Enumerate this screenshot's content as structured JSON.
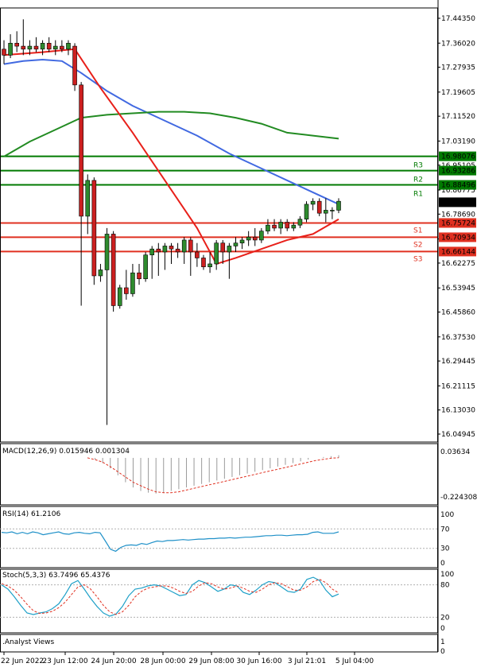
{
  "chart_data": [
    {
      "type": "candlestick",
      "x_labels": [
        "22 Jun 2022",
        "23 Jun 12:00",
        "24 Jun 20:00",
        "28 Jun 00:00",
        "29 Jun 08:00",
        "30 Jun 16:00",
        "3 Jul 21:01",
        "5 Jul 04:00"
      ],
      "y_ticks": [
        "17.44350",
        "17.36020",
        "17.27935",
        "17.19605",
        "17.11520",
        "17.03190",
        "16.95105",
        "16.86775",
        "16.78690",
        "16.70360",
        "16.62275",
        "16.53945",
        "16.45860",
        "16.37530",
        "16.29445",
        "16.21115",
        "16.13030",
        "16.04945"
      ],
      "ylim": [
        16.04945,
        17.4435
      ],
      "candles": [
        {
          "o": 17.34,
          "h": 17.37,
          "l": 17.29,
          "c": 17.32
        },
        {
          "o": 17.32,
          "h": 17.39,
          "l": 17.31,
          "c": 17.36
        },
        {
          "o": 17.36,
          "h": 17.4,
          "l": 17.33,
          "c": 17.35
        },
        {
          "o": 17.35,
          "h": 17.44,
          "l": 17.32,
          "c": 17.34
        },
        {
          "o": 17.34,
          "h": 17.37,
          "l": 17.32,
          "c": 17.35
        },
        {
          "o": 17.35,
          "h": 17.38,
          "l": 17.33,
          "c": 17.34
        },
        {
          "o": 17.34,
          "h": 17.37,
          "l": 17.32,
          "c": 17.36
        },
        {
          "o": 17.36,
          "h": 17.38,
          "l": 17.33,
          "c": 17.34
        },
        {
          "o": 17.34,
          "h": 17.37,
          "l": 17.32,
          "c": 17.35
        },
        {
          "o": 17.35,
          "h": 17.37,
          "l": 17.33,
          "c": 17.34
        },
        {
          "o": 17.34,
          "h": 17.37,
          "l": 17.32,
          "c": 17.36
        },
        {
          "o": 17.35,
          "h": 17.36,
          "l": 17.2,
          "c": 17.22
        },
        {
          "o": 17.22,
          "h": 17.23,
          "l": 16.48,
          "c": 16.78
        },
        {
          "o": 16.78,
          "h": 16.92,
          "l": 16.72,
          "c": 16.9
        },
        {
          "o": 16.9,
          "h": 16.91,
          "l": 16.55,
          "c": 16.58
        },
        {
          "o": 16.58,
          "h": 16.62,
          "l": 16.56,
          "c": 16.6
        },
        {
          "o": 16.6,
          "h": 16.74,
          "l": 16.08,
          "c": 16.72
        },
        {
          "o": 16.72,
          "h": 16.73,
          "l": 16.46,
          "c": 16.48
        },
        {
          "o": 16.48,
          "h": 16.55,
          "l": 16.47,
          "c": 16.54
        },
        {
          "o": 16.54,
          "h": 16.6,
          "l": 16.5,
          "c": 16.52
        },
        {
          "o": 16.52,
          "h": 16.62,
          "l": 16.51,
          "c": 16.59
        },
        {
          "o": 16.59,
          "h": 16.62,
          "l": 16.55,
          "c": 16.57
        },
        {
          "o": 16.57,
          "h": 16.66,
          "l": 16.56,
          "c": 16.65
        },
        {
          "o": 16.65,
          "h": 16.68,
          "l": 16.57,
          "c": 16.67
        },
        {
          "o": 16.67,
          "h": 16.69,
          "l": 16.58,
          "c": 16.66
        },
        {
          "o": 16.66,
          "h": 16.69,
          "l": 16.6,
          "c": 16.68
        },
        {
          "o": 16.68,
          "h": 16.69,
          "l": 16.62,
          "c": 16.67
        },
        {
          "o": 16.67,
          "h": 16.69,
          "l": 16.64,
          "c": 16.66
        },
        {
          "o": 16.66,
          "h": 16.71,
          "l": 16.62,
          "c": 16.7
        },
        {
          "o": 16.7,
          "h": 16.71,
          "l": 16.58,
          "c": 16.66
        },
        {
          "o": 16.66,
          "h": 16.69,
          "l": 16.61,
          "c": 16.64
        },
        {
          "o": 16.64,
          "h": 16.65,
          "l": 16.6,
          "c": 16.61
        },
        {
          "o": 16.61,
          "h": 16.66,
          "l": 16.59,
          "c": 16.62
        },
        {
          "o": 16.62,
          "h": 16.7,
          "l": 16.6,
          "c": 16.69
        },
        {
          "o": 16.69,
          "h": 16.7,
          "l": 16.62,
          "c": 16.66
        },
        {
          "o": 16.66,
          "h": 16.69,
          "l": 16.57,
          "c": 16.68
        },
        {
          "o": 16.68,
          "h": 16.71,
          "l": 16.66,
          "c": 16.69
        },
        {
          "o": 16.69,
          "h": 16.71,
          "l": 16.67,
          "c": 16.7
        },
        {
          "o": 16.7,
          "h": 16.73,
          "l": 16.68,
          "c": 16.71
        },
        {
          "o": 16.71,
          "h": 16.74,
          "l": 16.68,
          "c": 16.7
        },
        {
          "o": 16.7,
          "h": 16.74,
          "l": 16.69,
          "c": 16.73
        },
        {
          "o": 16.73,
          "h": 16.77,
          "l": 16.72,
          "c": 16.75
        },
        {
          "o": 16.75,
          "h": 16.77,
          "l": 16.73,
          "c": 16.74
        },
        {
          "o": 16.74,
          "h": 16.77,
          "l": 16.72,
          "c": 16.76
        },
        {
          "o": 16.76,
          "h": 16.77,
          "l": 16.73,
          "c": 16.74
        },
        {
          "o": 16.74,
          "h": 16.76,
          "l": 16.73,
          "c": 16.75
        },
        {
          "o": 16.75,
          "h": 16.78,
          "l": 16.74,
          "c": 16.77
        },
        {
          "o": 16.77,
          "h": 16.83,
          "l": 16.76,
          "c": 16.82
        },
        {
          "o": 16.82,
          "h": 16.84,
          "l": 16.8,
          "c": 16.83
        },
        {
          "o": 16.83,
          "h": 16.84,
          "l": 16.78,
          "c": 16.79
        },
        {
          "o": 16.79,
          "h": 16.84,
          "l": 16.76,
          "c": 16.8
        },
        {
          "o": 16.8,
          "h": 16.81,
          "l": 16.77,
          "c": 16.8
        },
        {
          "o": 16.8,
          "h": 16.84,
          "l": 16.79,
          "c": 16.83
        }
      ],
      "moving_averages": [
        {
          "color": "#4169e1",
          "points": [
            [
              0,
              17.29
            ],
            [
              3,
              17.3
            ],
            [
              6,
              17.305
            ],
            [
              9,
              17.3
            ],
            [
              12,
              17.26
            ],
            [
              16,
              17.2
            ],
            [
              20,
              17.15
            ],
            [
              25,
              17.1
            ],
            [
              30,
              17.05
            ],
            [
              35,
              16.99
            ],
            [
              40,
              16.94
            ],
            [
              45,
              16.89
            ],
            [
              49,
              16.85
            ],
            [
              52,
              16.82
            ]
          ]
        },
        {
          "color": "#228b22",
          "points": [
            [
              0,
              16.98
            ],
            [
              4,
              17.03
            ],
            [
              8,
              17.07
            ],
            [
              12,
              17.11
            ],
            [
              16,
              17.12
            ],
            [
              20,
              17.125
            ],
            [
              24,
              17.13
            ],
            [
              28,
              17.13
            ],
            [
              32,
              17.125
            ],
            [
              36,
              17.11
            ],
            [
              40,
              17.09
            ],
            [
              44,
              17.06
            ],
            [
              48,
              17.05
            ],
            [
              52,
              17.04
            ]
          ]
        },
        {
          "color": "#e8201a",
          "points": [
            [
              0,
              17.32
            ],
            [
              6,
              17.33
            ],
            [
              11,
              17.34
            ],
            [
              15,
              17.21
            ],
            [
              20,
              17.06
            ],
            [
              25,
              16.9
            ],
            [
              30,
              16.74
            ],
            [
              33,
              16.62
            ],
            [
              36,
              16.64
            ],
            [
              40,
              16.67
            ],
            [
              44,
              16.7
            ],
            [
              48,
              16.72
            ],
            [
              52,
              16.77
            ]
          ]
        }
      ],
      "levels": [
        {
          "label": "R3",
          "value": 16.98076,
          "value_text": "16.98076",
          "color": "#007a00"
        },
        {
          "label": "R2",
          "value": 16.93286,
          "value_text": "16.93286",
          "color": "#007a00"
        },
        {
          "label": "R1",
          "value": 16.88496,
          "value_text": "16.88496",
          "color": "#007a00"
        },
        {
          "label": "S1",
          "value": 16.75724,
          "value_text": "16.75724",
          "color": "#e03020"
        },
        {
          "label": "S2",
          "value": 16.70934,
          "value_text": "16.70934",
          "color": "#e03020"
        },
        {
          "label": "S3",
          "value": 16.66144,
          "value_text": "16.66144",
          "color": "#e03020"
        }
      ],
      "current_price": {
        "value": 16.8267,
        "value_text": "16.82670"
      }
    },
    {
      "type": "bar",
      "title": "MACD(12,26,9) 0.015946 0.001304",
      "y_ticks": [
        "0.03634",
        "-0.224308"
      ],
      "ylim": [
        -0.224308,
        0.03634
      ],
      "histogram": [
        0.0,
        -0.01,
        -0.03,
        -0.06,
        -0.1,
        -0.14,
        -0.17,
        -0.19,
        -0.2,
        -0.205,
        -0.2,
        -0.19,
        -0.18,
        -0.17,
        -0.16,
        -0.15,
        -0.14,
        -0.13,
        -0.12,
        -0.11,
        -0.1,
        -0.09,
        -0.08,
        -0.07,
        -0.06,
        -0.05,
        -0.04,
        -0.03,
        -0.02,
        -0.01,
        0.0,
        0.005,
        0.01,
        0.015
      ],
      "signal": [
        0.0,
        -0.01,
        -0.025,
        -0.05,
        -0.08,
        -0.11,
        -0.14,
        -0.16,
        -0.18,
        -0.195,
        -0.2,
        -0.2,
        -0.195,
        -0.185,
        -0.175,
        -0.165,
        -0.155,
        -0.145,
        -0.135,
        -0.125,
        -0.115,
        -0.105,
        -0.095,
        -0.085,
        -0.075,
        -0.065,
        -0.055,
        -0.045,
        -0.035,
        -0.025,
        -0.015,
        -0.008,
        -0.002,
        0.001
      ]
    },
    {
      "type": "line",
      "title": "RSI(14) 61.2106",
      "y_ticks": [
        "100",
        "70",
        "30",
        "0"
      ],
      "ylim": [
        0,
        100
      ],
      "values": [
        63,
        62,
        64,
        60,
        63,
        60,
        64,
        62,
        58,
        60,
        62,
        64,
        60,
        59,
        62,
        63,
        61,
        60,
        63,
        62,
        45,
        28,
        24,
        32,
        36,
        37,
        36,
        40,
        38,
        42,
        45,
        44,
        46,
        46,
        47,
        48,
        47,
        48,
        49,
        49,
        50,
        50,
        51,
        51,
        52,
        51,
        52,
        53,
        53,
        54,
        55,
        56,
        56,
        57,
        57,
        56,
        57,
        58,
        58,
        59,
        63,
        64,
        61,
        61,
        61,
        64
      ]
    },
    {
      "type": "line",
      "title": "Stoch(5,3,3) 63.7496 65.4376",
      "y_ticks": [
        "100",
        "80",
        "20",
        "0"
      ],
      "ylim": [
        0,
        100
      ],
      "k": [
        80,
        72,
        58,
        42,
        28,
        25,
        28,
        30,
        36,
        45,
        62,
        82,
        88,
        72,
        55,
        40,
        28,
        22,
        26,
        40,
        60,
        72,
        74,
        78,
        80,
        78,
        72,
        66,
        60,
        62,
        80,
        88,
        84,
        76,
        68,
        72,
        80,
        78,
        66,
        62,
        70,
        80,
        86,
        84,
        76,
        68,
        66,
        72,
        90,
        94,
        88,
        70,
        58,
        63
      ],
      "d": [
        82,
        78,
        70,
        58,
        44,
        32,
        27,
        28,
        31,
        38,
        48,
        62,
        76,
        80,
        72,
        58,
        42,
        30,
        25,
        30,
        42,
        58,
        68,
        74,
        76,
        78,
        78,
        74,
        68,
        64,
        68,
        78,
        84,
        82,
        76,
        72,
        74,
        78,
        74,
        68,
        66,
        72,
        80,
        84,
        82,
        76,
        70,
        70,
        76,
        86,
        90,
        84,
        72,
        65
      ]
    },
    {
      "type": "line",
      "title": ".Analyst Views",
      "y_ticks": [
        "1",
        "0"
      ],
      "ylim": [
        0,
        1
      ]
    }
  ]
}
